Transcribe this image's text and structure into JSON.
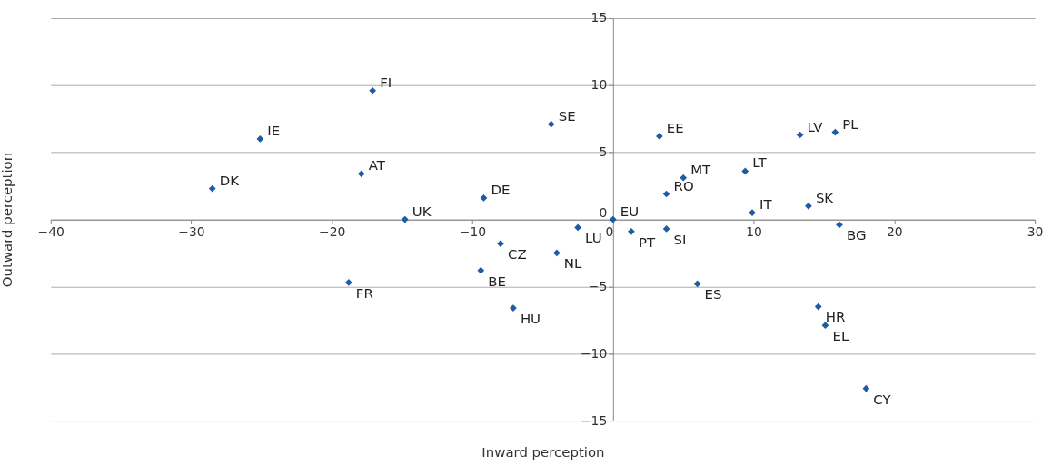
{
  "chart_data": {
    "type": "scatter",
    "xlabel": "Inward perception",
    "ylabel": "Outward perception",
    "x": [
      -17.1,
      -25.1,
      -28.5,
      -17.9,
      -14.8,
      -18.8,
      -9.2,
      -8.0,
      -9.4,
      -7.1,
      -4.4,
      -2.5,
      -4.0,
      0,
      1.3,
      3.8,
      3.8,
      5.0,
      3.3,
      6.0,
      9.4,
      9.9,
      13.3,
      15.8,
      13.9,
      16.1,
      14.6,
      15.1,
      18.0
    ],
    "series": [
      {
        "color": "#1f5aa6",
        "values": [
          9.6,
          6.0,
          2.3,
          3.4,
          0,
          -4.7,
          1.6,
          -1.8,
          -3.8,
          -6.6,
          7.1,
          -0.6,
          -2.5,
          0,
          -0.9,
          -0.7,
          1.9,
          3.1,
          6.2,
          -4.8,
          3.6,
          0.5,
          6.3,
          6.5,
          1.0,
          -0.4,
          -6.5,
          -7.9,
          -12.6
        ]
      }
    ],
    "annotations": [
      {
        "text": "FI",
        "x": -17.1,
        "y": 9.6
      },
      {
        "text": "IE",
        "x": -25.1,
        "y": 6.0
      },
      {
        "text": "DK",
        "x": -28.5,
        "y": 2.3
      },
      {
        "text": "AT",
        "x": -17.9,
        "y": 3.4
      },
      {
        "text": "UK",
        "x": -14.8,
        "y": 0
      },
      {
        "text": "FR",
        "x": -18.8,
        "y": -4.7
      },
      {
        "text": "DE",
        "x": -9.2,
        "y": 1.6
      },
      {
        "text": "CZ",
        "x": -8.0,
        "y": -1.8
      },
      {
        "text": "BE",
        "x": -9.4,
        "y": -3.8
      },
      {
        "text": "HU",
        "x": -7.1,
        "y": -6.6
      },
      {
        "text": "SE",
        "x": -4.4,
        "y": 7.1
      },
      {
        "text": "LU",
        "x": -2.5,
        "y": -0.6
      },
      {
        "text": "NL",
        "x": -4.0,
        "y": -2.5
      },
      {
        "text": "EU",
        "x": 0,
        "y": 0
      },
      {
        "text": "PT",
        "x": 1.3,
        "y": -0.9
      },
      {
        "text": "SI",
        "x": 3.8,
        "y": -0.7
      },
      {
        "text": "RO",
        "x": 3.8,
        "y": 1.9
      },
      {
        "text": "MT",
        "x": 5.0,
        "y": 3.1
      },
      {
        "text": "EE",
        "x": 3.3,
        "y": 6.2
      },
      {
        "text": "ES",
        "x": 6.0,
        "y": -4.8
      },
      {
        "text": "LT",
        "x": 9.4,
        "y": 3.6
      },
      {
        "text": "IT",
        "x": 9.9,
        "y": 0.5
      },
      {
        "text": "LV",
        "x": 13.3,
        "y": 6.3
      },
      {
        "text": "PL",
        "x": 15.8,
        "y": 6.5
      },
      {
        "text": "SK",
        "x": 13.9,
        "y": 1.0
      },
      {
        "text": "BG",
        "x": 16.1,
        "y": -0.4
      },
      {
        "text": "HR",
        "x": 14.6,
        "y": -6.5
      },
      {
        "text": "EL",
        "x": 15.1,
        "y": -7.9
      },
      {
        "text": "CY",
        "x": 18.0,
        "y": -12.6
      }
    ],
    "xlim": [
      -40,
      30
    ],
    "xticks": [
      -40,
      -30,
      -20,
      -10,
      0,
      10,
      20,
      30
    ],
    "ylim": [
      -15,
      15
    ],
    "yticks": [
      -15,
      -10,
      -5,
      0,
      5,
      10,
      15
    ],
    "grid": "y",
    "marker": "diamond"
  }
}
